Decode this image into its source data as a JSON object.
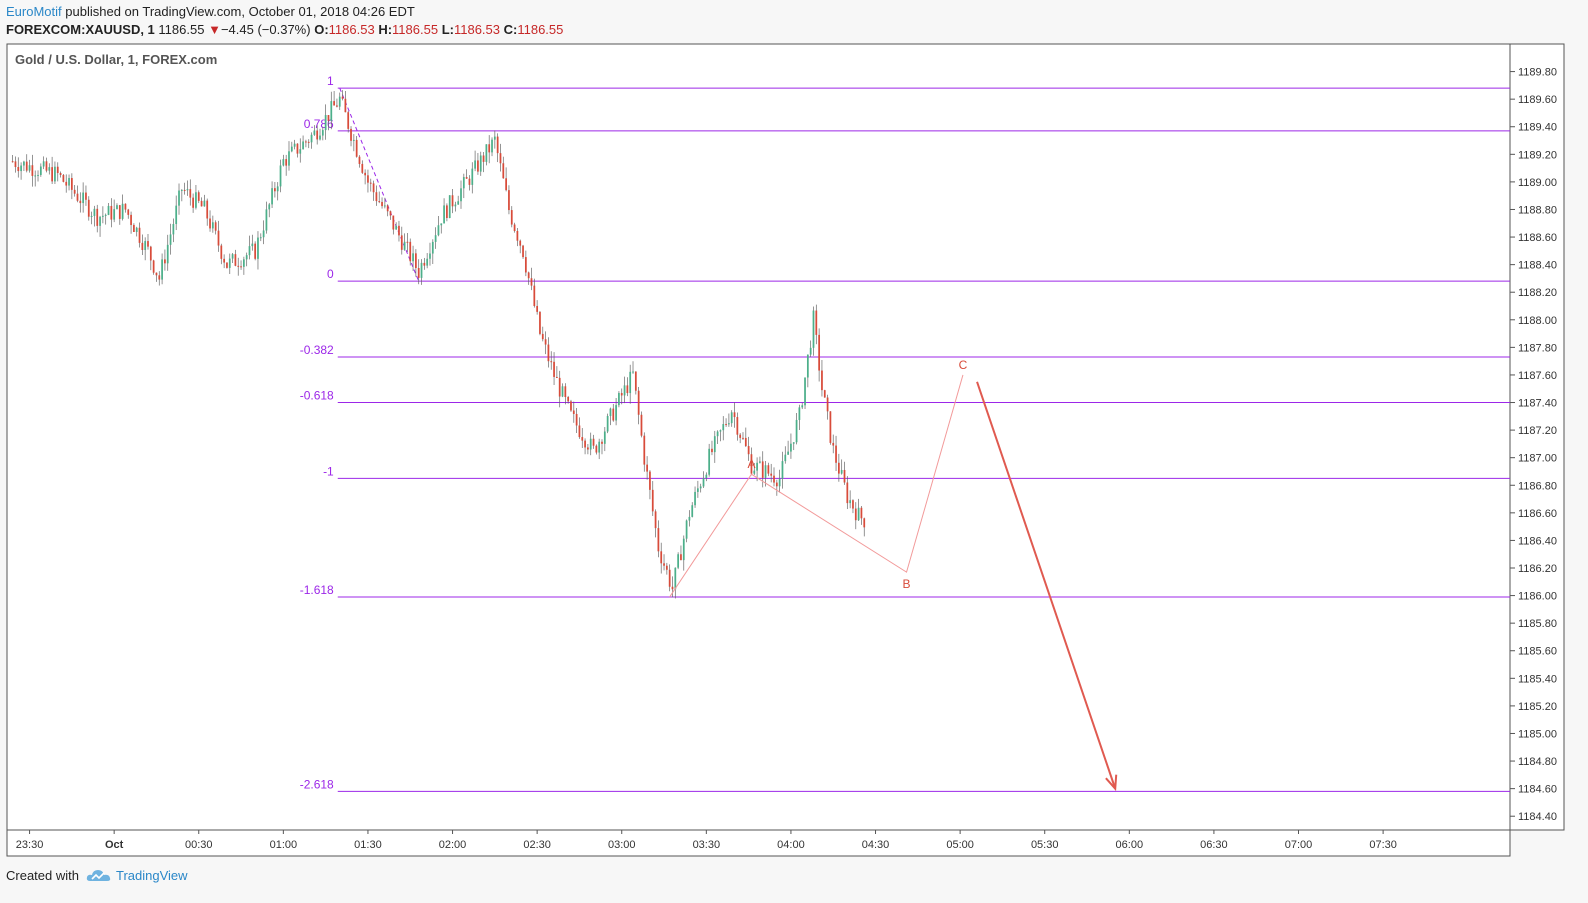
{
  "header": {
    "publisher": "EuroMotif",
    "published_text": "published on TradingView.com, October 01, 2018 04:26 EDT",
    "symbol": "FOREXCOM:XAUUSD, 1",
    "last": "1186.55",
    "change_arrow": "▼",
    "change": "−4.45 (−0.37%)",
    "o_label": "O:",
    "o_value": "1186.53",
    "h_label": "H:",
    "h_value": "1186.55",
    "l_label": "L:",
    "l_value": "1186.53",
    "c_label": "C:",
    "c_value": "1186.55"
  },
  "footer": {
    "created_with": "Created with",
    "brand": "TradingView",
    "logo_icon": "tradingview-cloud-icon"
  },
  "colors": {
    "fib": "#9c27e8",
    "up": "#4caf8a",
    "down": "#d84b3a",
    "abc": "#f29a9a",
    "arrow": "#e05a50"
  },
  "chart_data": {
    "type": "candlestick",
    "title": "Gold / U.S. Dollar, 1, FOREX.com",
    "y_ticks": [
      "1189.80",
      "1189.60",
      "1189.40",
      "1189.20",
      "1189.00",
      "1188.80",
      "1188.60",
      "1188.40",
      "1188.20",
      "1188.00",
      "1187.80",
      "1187.60",
      "1187.40",
      "1187.20",
      "1187.00",
      "1186.80",
      "1186.60",
      "1186.40",
      "1186.20",
      "1186.00",
      "1185.80",
      "1185.60",
      "1185.40",
      "1185.20",
      "1185.00",
      "1184.80",
      "1184.60",
      "1184.40"
    ],
    "ylim": [
      1184.3,
      1190.0
    ],
    "x_ticks": [
      "23:30",
      "Oct",
      "00:30",
      "01:00",
      "01:30",
      "02:00",
      "02:30",
      "03:00",
      "03:30",
      "04:00",
      "04:30",
      "05:00",
      "05:30",
      "06:00",
      "06:30",
      "07:00",
      "07:30"
    ],
    "x_range_minutes": [
      -38,
      495
    ],
    "fib_levels": [
      {
        "label": "1",
        "price": 1189.68
      },
      {
        "label": "0.786",
        "price": 1189.37
      },
      {
        "label": "0",
        "price": 1188.28
      },
      {
        "label": "-0.382",
        "price": 1187.73
      },
      {
        "label": "-0.618",
        "price": 1187.4
      },
      {
        "label": "-1",
        "price": 1186.85
      },
      {
        "label": "-1.618",
        "price": 1185.99
      },
      {
        "label": "-2.618",
        "price": 1184.58
      }
    ],
    "fib_anchor": {
      "start": {
        "t": 80,
        "price": 1189.68
      },
      "end": {
        "t": 108,
        "price": 1188.28
      }
    },
    "abc_pattern": {
      "points": [
        {
          "label": "",
          "t": 197,
          "price": 1185.99
        },
        {
          "label": "A",
          "t": 226,
          "price": 1186.88
        },
        {
          "label": "B",
          "t": 281,
          "price": 1186.17
        },
        {
          "label": "C",
          "t": 301,
          "price": 1187.6
        }
      ]
    },
    "projection_arrow": {
      "from": {
        "t": 306,
        "price": 1187.55
      },
      "to": {
        "t": 355,
        "price": 1184.6
      }
    },
    "ohlc_seed": {
      "start_t": -36,
      "end_t": 287,
      "step": 1
    }
  }
}
